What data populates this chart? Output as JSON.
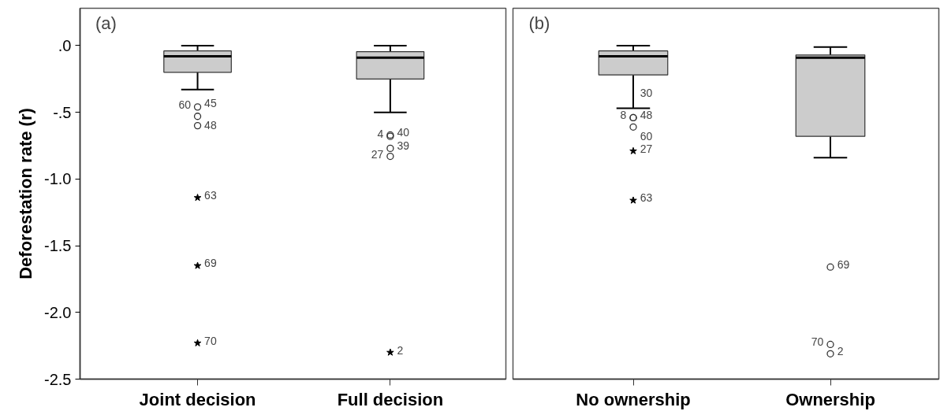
{
  "chart_data": [
    {
      "type": "box",
      "title": "(a)",
      "ylabel": "Deforestation rate (r)",
      "categories": [
        "Joint decision",
        "Full decision"
      ],
      "ylim": [
        -2.5,
        0.28
      ],
      "yticks": [
        {
          "value": 0,
          "label": ".0"
        },
        {
          "value": -0.5,
          "label": "-.5"
        },
        {
          "value": -1.0,
          "label": "-1.0"
        },
        {
          "value": -1.5,
          "label": "-1.5"
        },
        {
          "value": -2.0,
          "label": "-2.0"
        },
        {
          "value": -2.5,
          "label": "-2.5"
        }
      ],
      "grid": false,
      "series": [
        {
          "type": "box",
          "color": "#cccccc",
          "boxes": [
            {
              "low": -0.33,
              "q1": -0.2,
              "median": -0.08,
              "q3": -0.04,
              "high": 0.0
            },
            {
              "low": -0.5,
              "q1": -0.25,
              "median": -0.09,
              "q3": -0.045,
              "high": 0.0
            }
          ]
        },
        {
          "type": "scatter",
          "marker": "circle",
          "color": "#333333",
          "x": [
            "Joint decision",
            "Joint decision",
            "Joint decision",
            "Full decision",
            "Full decision",
            "Full decision",
            "Full decision"
          ],
          "values": [
            -0.46,
            -0.53,
            -0.6,
            -0.67,
            -0.68,
            -0.77,
            -0.83
          ]
        },
        {
          "type": "scatter",
          "marker": "star",
          "color": "#000000",
          "x": [
            "Joint decision",
            "Joint decision",
            "Joint decision",
            "Full decision"
          ],
          "values": [
            -1.14,
            -1.65,
            -2.23,
            -2.3
          ]
        }
      ],
      "annotations": [
        {
          "text": "45",
          "x": "Joint decision",
          "y": -0.45
        },
        {
          "text": "60",
          "x": "Joint decision",
          "y": -0.46
        },
        {
          "text": "48",
          "x": "Joint decision",
          "y": -0.53
        },
        {
          "text": "63",
          "x": "Joint decision",
          "y": -1.14
        },
        {
          "text": "69",
          "x": "Joint decision",
          "y": -1.65
        },
        {
          "text": "70",
          "x": "Joint decision",
          "y": -2.23
        },
        {
          "text": "40",
          "x": "Full decision",
          "y": -0.67
        },
        {
          "text": "4",
          "x": "Full decision",
          "y": -0.68
        },
        {
          "text": "39",
          "x": "Full decision",
          "y": -0.77
        },
        {
          "text": "27",
          "x": "Full decision",
          "y": -0.83
        },
        {
          "text": "2",
          "x": "Full decision",
          "y": -2.3
        }
      ]
    },
    {
      "type": "box",
      "title": "(b)",
      "categories": [
        "No ownership",
        "Ownership"
      ],
      "ylim": [
        -2.5,
        0.28
      ],
      "tick_labels": "x",
      "grid": false,
      "series": [
        {
          "type": "box",
          "color": "#cccccc",
          "boxes": [
            {
              "low": -0.47,
              "q1": -0.22,
              "median": -0.08,
              "q3": -0.04,
              "high": 0.0
            },
            {
              "low": -0.84,
              "q1": -0.68,
              "median": -0.09,
              "q3": -0.07,
              "high": -0.01
            }
          ]
        },
        {
          "type": "scatter",
          "marker": "circle",
          "color": "#333333",
          "x": [
            "No ownership",
            "No ownership",
            "No ownership",
            "Ownership",
            "Ownership",
            "Ownership"
          ],
          "values": [
            -0.54,
            -0.54,
            -0.61,
            -1.66,
            -2.24,
            -2.31
          ]
        },
        {
          "type": "scatter",
          "marker": "star",
          "color": "#000000",
          "x": [
            "No ownership",
            "No ownership"
          ],
          "values": [
            -0.79,
            -1.16
          ]
        }
      ],
      "annotations": [
        {
          "text": "48",
          "x": "No ownership",
          "y": -0.54
        },
        {
          "text": "8",
          "x": "No ownership",
          "y": -0.54
        },
        {
          "text": "30",
          "x": "No ownership",
          "y": -0.46
        },
        {
          "text": "60",
          "x": "No ownership",
          "y": -0.61
        },
        {
          "text": "27",
          "x": "No ownership",
          "y": -0.79
        },
        {
          "text": "63",
          "x": "No ownership",
          "y": -1.16
        },
        {
          "text": "69",
          "x": "Ownership",
          "y": -1.66
        },
        {
          "text": "2",
          "x": "Ownership",
          "y": -2.31
        },
        {
          "text": "70",
          "x": "Ownership",
          "y": -2.24
        }
      ]
    }
  ]
}
